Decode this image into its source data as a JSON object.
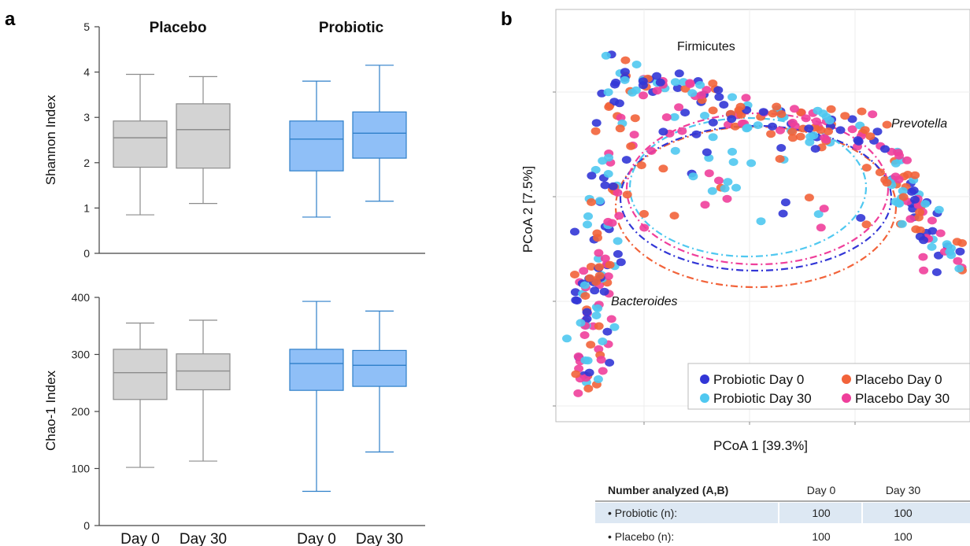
{
  "panel_labels": {
    "a": "a",
    "b": "b"
  },
  "colors": {
    "placebo_box": "#d3d3d3",
    "placebo_edge": "#8c8c8c",
    "probiotic_box": "#8fbff7",
    "probiotic_edge": "#2e7fc9",
    "probiotic_day0": "#3236d6",
    "probiotic_day30": "#4fc8f0",
    "placebo_day0": "#f2633a",
    "placebo_day30": "#ef3f9b",
    "table_highlight": "#dde8f3"
  },
  "chart_data": [
    {
      "type": "box",
      "id": "shannon",
      "ylabel": "Shannon Index",
      "ylim": [
        0,
        5
      ],
      "yticks": [
        0,
        1,
        2,
        3,
        4,
        5
      ],
      "groups": [
        "Placebo",
        "Probiotic"
      ],
      "categories": [
        "Day 0",
        "Day 30",
        "Day 0",
        "Day 30"
      ],
      "boxes": [
        {
          "group": "Placebo",
          "day": "Day 0",
          "min": 0.85,
          "q1": 1.9,
          "median": 2.55,
          "q3": 2.92,
          "max": 3.95
        },
        {
          "group": "Placebo",
          "day": "Day 30",
          "min": 1.1,
          "q1": 1.88,
          "median": 2.73,
          "q3": 3.3,
          "max": 3.9
        },
        {
          "group": "Probiotic",
          "day": "Day 0",
          "min": 0.8,
          "q1": 1.82,
          "median": 2.52,
          "q3": 2.92,
          "max": 3.8
        },
        {
          "group": "Probiotic",
          "day": "Day 30",
          "min": 1.15,
          "q1": 2.1,
          "median": 2.65,
          "q3": 3.12,
          "max": 4.15
        }
      ]
    },
    {
      "type": "box",
      "id": "chao1",
      "ylabel": "Chao-1 Index",
      "ylim": [
        0,
        400
      ],
      "yticks": [
        0,
        100,
        200,
        300,
        400
      ],
      "categories": [
        "Day 0",
        "Day 30",
        "Day 0",
        "Day 30"
      ],
      "boxes": [
        {
          "group": "Placebo",
          "day": "Day 0",
          "min": 102,
          "q1": 221,
          "median": 268,
          "q3": 309,
          "max": 355
        },
        {
          "group": "Placebo",
          "day": "Day 30",
          "min": 113,
          "q1": 238,
          "median": 271,
          "q3": 301,
          "max": 360
        },
        {
          "group": "Probiotic",
          "day": "Day 0",
          "min": 60,
          "q1": 237,
          "median": 284,
          "q3": 309,
          "max": 393
        },
        {
          "group": "Probiotic",
          "day": "Day 30",
          "min": 129,
          "q1": 244,
          "median": 281,
          "q3": 307,
          "max": 376
        }
      ]
    },
    {
      "type": "scatter",
      "id": "pcoa",
      "xlabel": "PCoA 1 [39.3%]",
      "ylabel": "PCoA 2 [7.5%]",
      "annotations": {
        "firmicutes": "Firmicutes",
        "prevotella": "Prevotella",
        "bacteroides": "Bacteroides"
      },
      "legend": [
        "Probiotic Day 0",
        "Placebo Day 0",
        "Probiotic Day 30",
        "Placebo Day 30"
      ],
      "grid": true,
      "series": [
        {
          "name": "Probiotic Day 0"
        },
        {
          "name": "Probiotic Day 30"
        },
        {
          "name": "Placebo Day 0"
        },
        {
          "name": "Placebo Day 30"
        }
      ]
    }
  ],
  "table": {
    "header": [
      "Number analyzed (A,B)",
      "Day 0",
      "Day 30"
    ],
    "rows": [
      {
        "label": "• Probiotic (n):",
        "day0": "100",
        "day30": "100"
      },
      {
        "label": "• Placebo (n):",
        "day0": "100",
        "day30": "100"
      }
    ]
  }
}
